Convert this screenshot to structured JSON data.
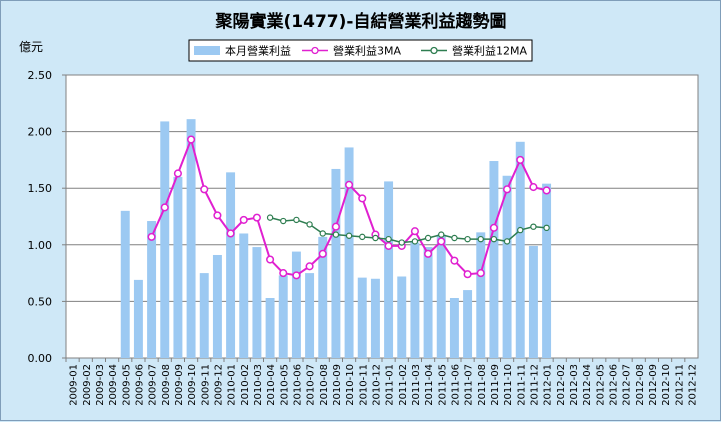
{
  "chart_data": {
    "type": "bar",
    "title": "聚陽實業(1477)-自結營業利益趨勢圖",
    "ylabel": "億元",
    "ylim": [
      0,
      2.5
    ],
    "yticks": [
      "0.00",
      "0.50",
      "1.00",
      "1.50",
      "2.00",
      "2.50"
    ],
    "grid": true,
    "legend_position": "top",
    "categories": [
      "2009-01",
      "2009-02",
      "2009-03",
      "2009-04",
      "2009-05",
      "2009-06",
      "2009-07",
      "2009-08",
      "2009-09",
      "2009-10",
      "2009-11",
      "2009-12",
      "2010-01",
      "2010-02",
      "2010-03",
      "2010-04",
      "2010-05",
      "2010-06",
      "2010-07",
      "2010-08",
      "2010-09",
      "2010-10",
      "2010-11",
      "2010-12",
      "2011-01",
      "2011-02",
      "2011-03",
      "2011-04",
      "2011-05",
      "2011-06",
      "2011-07",
      "2011-08",
      "2011-09",
      "2011-10",
      "2011-11",
      "2011-12",
      "2012-01",
      "2012-02",
      "2012-03",
      "2012-04",
      "2012-05",
      "2012-06",
      "2012-07",
      "2012-08",
      "2012-09",
      "2012-10",
      "2012-11",
      "2012-12"
    ],
    "series": [
      {
        "name": "本月營業利益",
        "kind": "bar",
        "color": "#9cc9f2",
        "values": [
          null,
          null,
          null,
          null,
          1.3,
          0.69,
          1.21,
          2.09,
          1.6,
          2.11,
          0.75,
          0.91,
          1.64,
          1.1,
          0.98,
          0.53,
          0.73,
          0.94,
          0.75,
          1.07,
          1.67,
          1.86,
          0.71,
          0.7,
          1.56,
          0.72,
          1.02,
          0.98,
          1.09,
          0.53,
          0.6,
          1.11,
          1.74,
          1.61,
          1.91,
          0.99,
          1.54,
          null,
          null,
          null,
          null,
          null,
          null,
          null,
          null,
          null,
          null,
          null
        ]
      },
      {
        "name": "營業利益3MA",
        "kind": "line",
        "color": "#e020d0",
        "values": [
          null,
          null,
          null,
          null,
          null,
          null,
          1.07,
          1.33,
          1.63,
          1.93,
          1.49,
          1.26,
          1.1,
          1.22,
          1.24,
          0.87,
          0.75,
          0.73,
          0.81,
          0.92,
          1.16,
          1.53,
          1.41,
          1.09,
          0.99,
          0.99,
          1.12,
          0.92,
          1.03,
          0.86,
          0.74,
          0.75,
          1.15,
          1.49,
          1.75,
          1.51,
          1.48,
          null,
          null,
          null,
          null,
          null,
          null,
          null,
          null,
          null,
          null,
          null
        ]
      },
      {
        "name": "營業利益12MA",
        "kind": "line",
        "color": "#2e7d50",
        "values": [
          null,
          null,
          null,
          null,
          null,
          null,
          null,
          null,
          null,
          null,
          null,
          null,
          null,
          null,
          null,
          1.24,
          1.21,
          1.22,
          1.18,
          1.1,
          1.09,
          1.08,
          1.07,
          1.06,
          1.05,
          1.02,
          1.03,
          1.06,
          1.09,
          1.06,
          1.05,
          1.05,
          1.05,
          1.03,
          1.13,
          1.16,
          1.15,
          null,
          null,
          null,
          null,
          null,
          null,
          null,
          null,
          null,
          null,
          null
        ]
      }
    ]
  }
}
